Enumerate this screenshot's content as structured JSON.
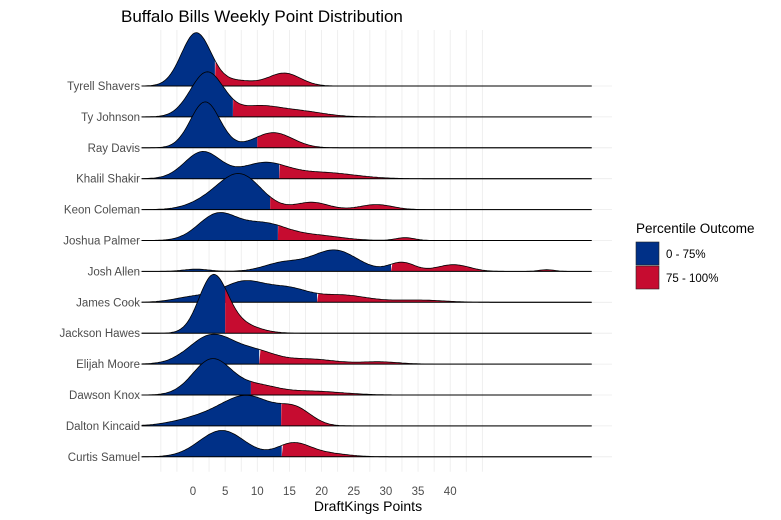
{
  "chart_data": {
    "type": "ridgeline",
    "title": "Buffalo Bills Weekly Point Distribution",
    "xlabel": "DraftKings Points",
    "ylabel": "",
    "x_ticks": [
      0,
      5,
      10,
      15,
      20,
      25,
      30,
      35,
      40
    ],
    "x_tick_labels": [
      "0",
      "5",
      "10",
      "15",
      "20",
      "25",
      "30",
      "35",
      "40"
    ],
    "xlim": [
      -8,
      62
    ],
    "grid": true,
    "legend": {
      "title": "Percentile Outcome",
      "placement": "right",
      "entries": [
        {
          "label": "0 - 75%",
          "color": "#003087"
        },
        {
          "label": "75 - 100%",
          "color": "#C60C30"
        }
      ]
    },
    "note": "each series: density modelled as gaussian components [mean, sd, relative_height]; p75 = 75th percentile (points) where fill switches color",
    "series": [
      {
        "name": "Tyrell Shavers",
        "p75": 3.4,
        "components": [
          [
            0.5,
            2.3,
            0.95
          ],
          [
            7,
            2.5,
            0.09
          ],
          [
            14.2,
            2.5,
            0.23
          ]
        ]
      },
      {
        "name": "Ty Johnson",
        "p75": 6.2,
        "components": [
          [
            2.2,
            2.6,
            0.8
          ],
          [
            10,
            3,
            0.16
          ],
          [
            16,
            4,
            0.11
          ]
        ]
      },
      {
        "name": "Ray Davis",
        "p75": 10.0,
        "components": [
          [
            1.9,
            2.3,
            0.82
          ],
          [
            12.5,
            3,
            0.27
          ]
        ]
      },
      {
        "name": "Khalil Shakir",
        "p75": 13.4,
        "components": [
          [
            1.5,
            2.8,
            0.48
          ],
          [
            11,
            3.5,
            0.27
          ],
          [
            20,
            5,
            0.11
          ]
        ]
      },
      {
        "name": "Keon Coleman",
        "p75": 12.0,
        "components": [
          [
            7.3,
            3.3,
            0.62
          ],
          [
            18.5,
            2.5,
            0.13
          ],
          [
            28.5,
            2.5,
            0.09
          ],
          [
            2,
            3,
            0.11
          ]
        ]
      },
      {
        "name": "Joshua Palmer",
        "p75": 13.2,
        "components": [
          [
            3.8,
            3,
            0.46
          ],
          [
            11,
            3.5,
            0.29
          ],
          [
            19,
            4,
            0.09
          ],
          [
            33,
            1.5,
            0.05
          ]
        ]
      },
      {
        "name": "Josh Allen",
        "p75": 30.8,
        "components": [
          [
            0.5,
            2,
            0.04
          ],
          [
            14,
            3,
            0.15
          ],
          [
            22,
            3.5,
            0.38
          ],
          [
            32.5,
            2,
            0.16
          ],
          [
            40.5,
            2.5,
            0.12
          ],
          [
            55,
            1.2,
            0.03
          ]
        ]
      },
      {
        "name": "James Cook",
        "p75": 19.3,
        "components": [
          [
            0,
            3,
            0.09
          ],
          [
            8,
            3.5,
            0.37
          ],
          [
            15,
            3,
            0.21
          ],
          [
            23,
            4,
            0.13
          ],
          [
            35,
            4,
            0.04
          ]
        ]
      },
      {
        "name": "Jackson Hawes",
        "p75": 5.0,
        "components": [
          [
            3.1,
            2.2,
            0.98
          ],
          [
            7,
            3,
            0.16
          ]
        ]
      },
      {
        "name": "Elijah Moore",
        "p75": 10.3,
        "components": [
          [
            3,
            3.5,
            0.52
          ],
          [
            10,
            3,
            0.19
          ],
          [
            18,
            4,
            0.09
          ],
          [
            29,
            3,
            0.04
          ]
        ]
      },
      {
        "name": "Dawson Knox",
        "p75": 9.0,
        "components": [
          [
            3,
            3,
            0.64
          ],
          [
            10,
            3,
            0.15
          ],
          [
            18,
            5,
            0.07
          ]
        ]
      },
      {
        "name": "Dalton Kincaid",
        "p75": 13.7,
        "components": [
          [
            8.5,
            4,
            0.52
          ],
          [
            16,
            2.5,
            0.27
          ],
          [
            1,
            4,
            0.13
          ]
        ]
      },
      {
        "name": "Curtis Samuel",
        "p75": 13.8,
        "components": [
          [
            4.5,
            3.5,
            0.47
          ],
          [
            15.5,
            2.5,
            0.22
          ],
          [
            20,
            3.5,
            0.07
          ]
        ]
      }
    ]
  }
}
